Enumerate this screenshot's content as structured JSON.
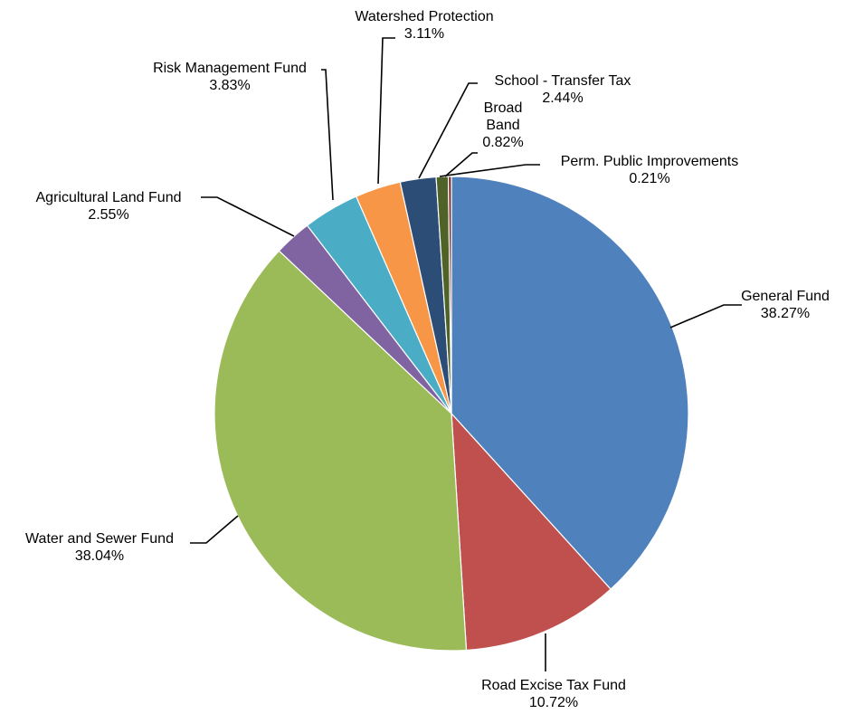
{
  "chart_data": {
    "type": "pie",
    "title": "",
    "start_angle_deg": 0,
    "direction": "clockwise",
    "legend": "none",
    "slices": [
      {
        "name": "General Fund",
        "value": 38.27,
        "label": "38.27%",
        "color": "#4F81BD"
      },
      {
        "name": "Road Excise Tax Fund",
        "value": 10.72,
        "label": "10.72%",
        "color": "#C0504D"
      },
      {
        "name": "Water and Sewer Fund",
        "value": 38.04,
        "label": "38.04%",
        "color": "#9BBB59"
      },
      {
        "name": "Agricultural Land Fund",
        "value": 2.55,
        "label": "2.55%",
        "color": "#8064A2"
      },
      {
        "name": "Risk Management Fund",
        "value": 3.83,
        "label": "3.83%",
        "color": "#4BACC6"
      },
      {
        "name": "Watershed Protection",
        "value": 3.11,
        "label": "3.11%",
        "color": "#F79646"
      },
      {
        "name": "School - Transfer Tax",
        "value": 2.44,
        "label": "2.44%",
        "color": "#2C4D75"
      },
      {
        "name": "Broad Band",
        "value": 0.82,
        "label": "0.82%",
        "color": "#4F6228"
      },
      {
        "name": "Perm. Public Improvements",
        "value": 0.21,
        "label": "0.21%",
        "color": "#772C2A"
      }
    ],
    "label_lines": {
      "General Fund": [
        "General Fund"
      ],
      "Road Excise Tax Fund": [
        "Road Excise Tax Fund"
      ],
      "Water and Sewer Fund": [
        "Water and Sewer Fund"
      ],
      "Agricultural Land Fund": [
        "Agricultural Land Fund"
      ],
      "Risk Management Fund": [
        "Risk Management Fund"
      ],
      "Watershed Protection": [
        "Watershed Protection"
      ],
      "School - Transfer Tax": [
        "School - Transfer Tax"
      ],
      "Broad Band": [
        "Broad",
        "Band"
      ],
      "Perm. Public Improvements": [
        "Perm. Public Improvements"
      ]
    }
  }
}
